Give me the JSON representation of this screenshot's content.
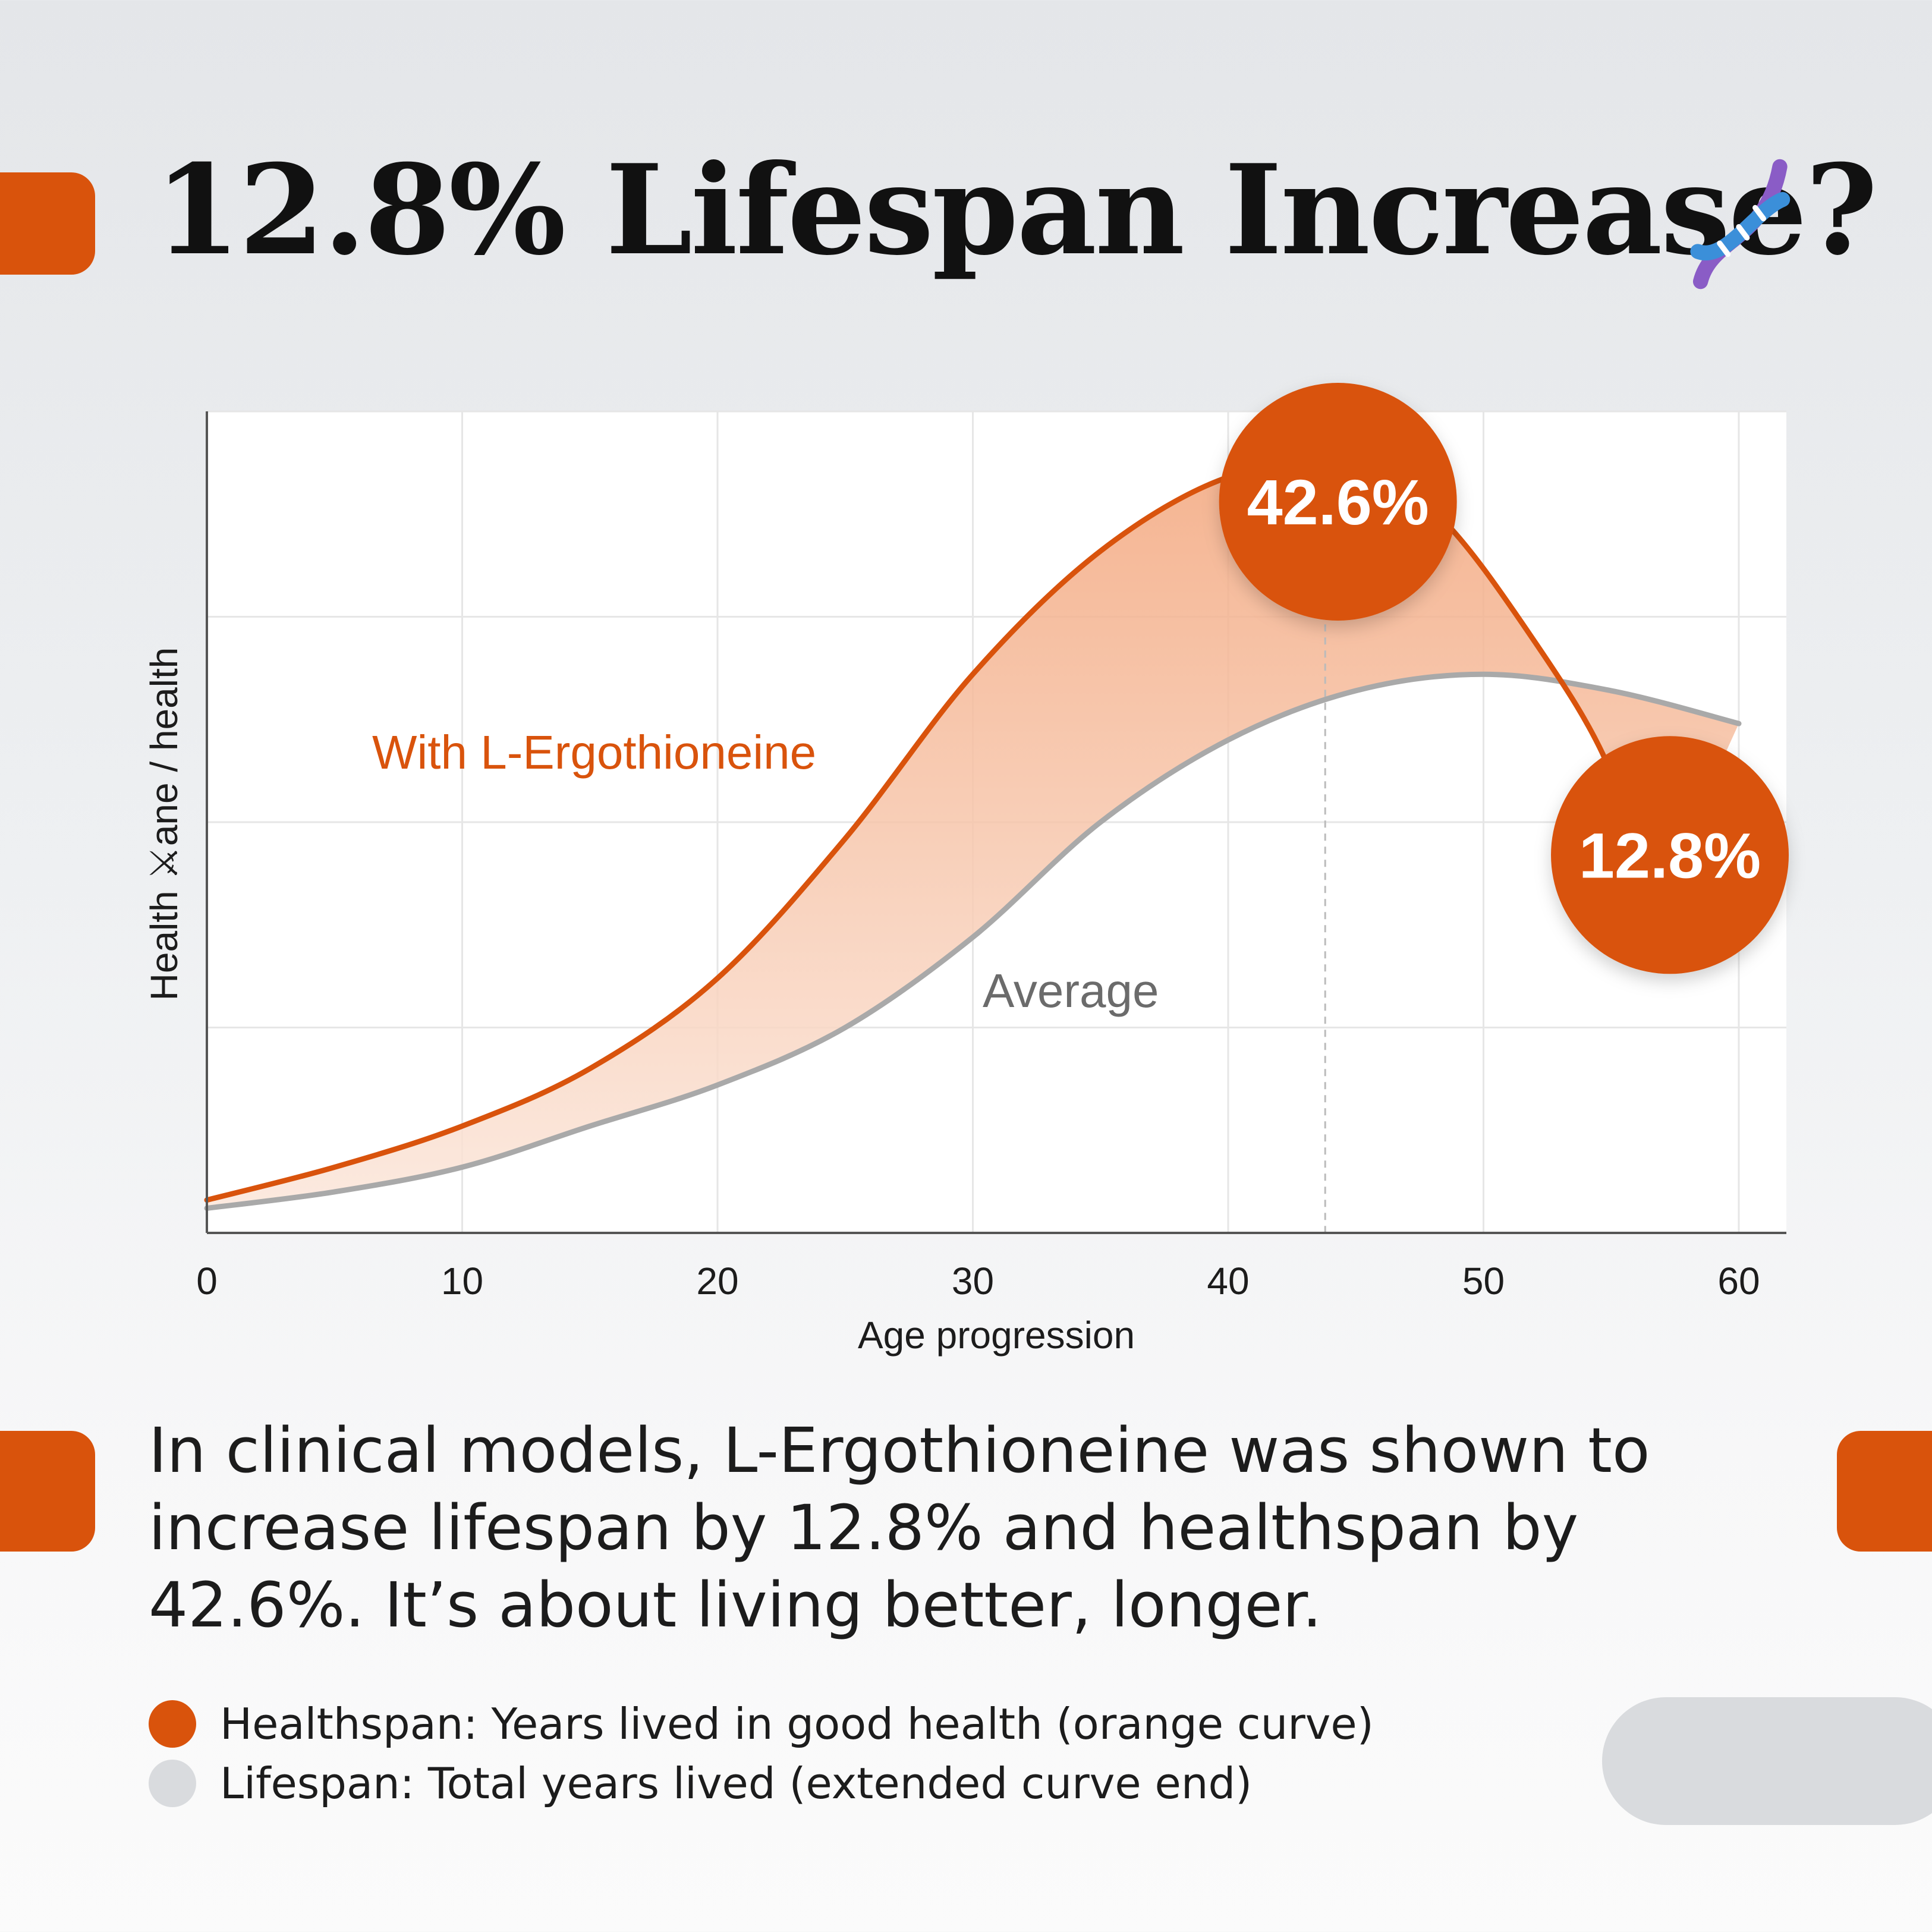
{
  "title": "12.8% Lifespan Increase?",
  "colors": {
    "accent": "#d9530c",
    "average_line": "#a9a9a9",
    "fill": "#f4b08a",
    "legend_gray": "#d9dbde"
  },
  "icons": {
    "title_icon": "dna-icon"
  },
  "chart_data": {
    "type": "line",
    "xlabel": "Age progression",
    "ylabel": "Health ⚔ane / health",
    "xlim": [
      0,
      60
    ],
    "ylim": [
      0,
      100
    ],
    "x_ticks": [
      "0",
      "10",
      "20",
      "30",
      "40",
      "50",
      "60"
    ],
    "grid": true,
    "series": [
      {
        "name": "With L-Ergothioneine",
        "x": [
          0,
          5,
          10,
          15,
          20,
          25,
          30,
          35,
          40,
          44.3,
          48,
          52,
          55,
          56.5
        ],
        "y": [
          4,
          8,
          13,
          20,
          31,
          48,
          68,
          83,
          92,
          93,
          88,
          72,
          56,
          38
        ]
      },
      {
        "name": "Average",
        "x": [
          0,
          5,
          10,
          15,
          20,
          25,
          30,
          35,
          40,
          45,
          50,
          55,
          60
        ],
        "y": [
          3,
          5,
          8,
          13,
          18,
          25,
          36,
          50,
          60,
          66,
          68,
          66,
          62
        ]
      }
    ],
    "annotations": [
      {
        "label": "42.6%",
        "x": 44.3,
        "y": 89
      },
      {
        "label": "12.8%",
        "x": 57.3,
        "y": 46
      }
    ],
    "marker_line_x": 43.8
  },
  "body_text": "In clinical models, L-Ergothioneine was shown to increase lifespan by 12.8% and healthspan by 42.6%. It’s about living better, longer.",
  "legend": [
    {
      "label": "Healthspan: Years lived in good health (orange curve)",
      "color": "#d9530c"
    },
    {
      "label": "Lifespan: Total years lived (extended curve end)",
      "color": "#d9dbde"
    }
  ]
}
